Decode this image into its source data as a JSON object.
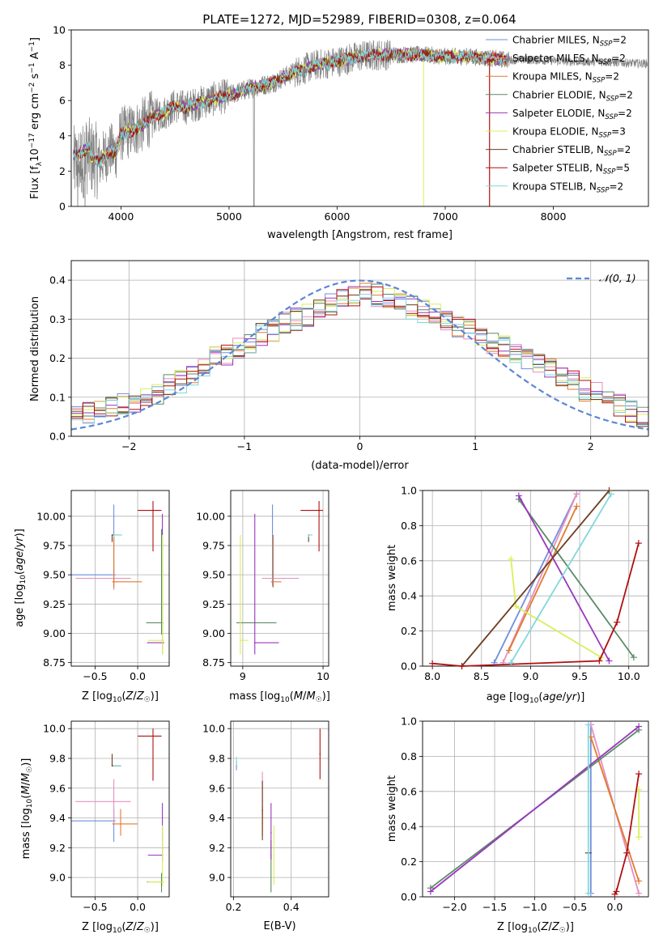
{
  "figure_title": "PLATE=1272, MJD=52989, FIBERID=0308, z=0.064",
  "colors": {
    "grey": "#808080",
    "chabrier_miles": "#6f8fdd",
    "salpeter_miles": "#e58fc0",
    "kroupa_miles": "#e07b2f",
    "chabrier_elodie": "#5b8a67",
    "salpeter_elodie": "#9a36bd",
    "kroupa_elodie": "#d9ef58",
    "chabrier_stelib": "#6b3d1f",
    "salpeter_stelib": "#b01010",
    "kroupa_stelib": "#7fd8dc",
    "gauss": "#5c86d6",
    "grid": "#b0b0b0"
  },
  "series_names": [
    "Chabrier MILES, N$_{SSP}$=2",
    "Salpeter MILES, N$_{SSP}$=2",
    "Kroupa MILES, N$_{SSP}$=2",
    "Chabrier ELODIE, N$_{SSP}$=2",
    "Salpeter ELODIE, N$_{SSP}$=2",
    "Kroupa ELODIE, N$_{SSP}$=3",
    "Chabrier STELIB, N$_{SSP}$=2",
    "Salpeter STELIB, N$_{SSP}$=5",
    "Kroupa STELIB, N$_{SSP}$=2"
  ],
  "legend_labels": [
    {
      "main": "Chabrier MILES, N",
      "sub": "SSP",
      "tail": "=2"
    },
    {
      "main": "Salpeter MILES, N",
      "sub": "SSP",
      "tail": "=2"
    },
    {
      "main": "Kroupa MILES, N",
      "sub": "SSP",
      "tail": "=2"
    },
    {
      "main": "Chabrier ELODIE, N",
      "sub": "SSP",
      "tail": "=2"
    },
    {
      "main": "Salpeter ELODIE, N",
      "sub": "SSP",
      "tail": "=2"
    },
    {
      "main": "Kroupa ELODIE, N",
      "sub": "SSP",
      "tail": "=3"
    },
    {
      "main": "Chabrier STELIB, N",
      "sub": "SSP",
      "tail": "=2"
    },
    {
      "main": "Salpeter STELIB, N",
      "sub": "SSP",
      "tail": "=5"
    },
    {
      "main": "Kroupa STELIB, N",
      "sub": "SSP",
      "tail": "=2"
    }
  ],
  "gauss_label": "𝒩(0, 1)",
  "chart_data": [
    {
      "id": "spectrum",
      "type": "line",
      "xlabel": "wavelength [Angstrom, rest frame]",
      "ylabel": "Flux [f_λ 10^-17 erg cm^-2 s^-1 A^-1]",
      "xlim": [
        3540,
        8880
      ],
      "ylim": [
        0,
        10
      ],
      "xticks": [
        4000,
        5000,
        6000,
        7000,
        8000
      ],
      "yticks": [
        0,
        2,
        4,
        6,
        8,
        10
      ],
      "continuum": {
        "x": [
          3560,
          3650,
          3700,
          3800,
          3900,
          3950,
          4000,
          4100,
          4200,
          4300,
          4400,
          4500,
          4600,
          4800,
          5000,
          5200,
          5400,
          5600,
          5800,
          6000,
          6200,
          6400,
          6600,
          6800,
          7000,
          7200,
          7400,
          7600,
          7800,
          8000,
          8200,
          8400,
          8600,
          8800
        ],
        "y": [
          2.4,
          2.6,
          2.9,
          2.5,
          3.2,
          3.0,
          4.1,
          4.3,
          4.6,
          5.1,
          5.3,
          5.7,
          5.6,
          6.0,
          6.3,
          6.7,
          7.0,
          7.6,
          8.0,
          8.2,
          8.5,
          8.6,
          8.6,
          8.6,
          8.5,
          8.5,
          8.4,
          8.3,
          8.3,
          8.25,
          8.2,
          8.2,
          8.15,
          8.1
        ]
      },
      "notes": "Observed spectrum (grey) with nine model fits overlapping it; models extend to about 7550 Angstrom"
    },
    {
      "id": "residual_hist",
      "type": "line",
      "xlabel": "(data-model)/error",
      "ylabel": "Normed distribution",
      "xlim": [
        -2.5,
        2.5
      ],
      "ylim": [
        0,
        0.45
      ],
      "xticks": [
        -2,
        -1,
        0,
        1,
        2
      ],
      "yticks": [
        0.0,
        0.1,
        0.2,
        0.3,
        0.4
      ],
      "bin_width": 0.1,
      "base_values": [
        0.05,
        0.06,
        0.07,
        0.08,
        0.085,
        0.09,
        0.1,
        0.11,
        0.13,
        0.14,
        0.16,
        0.18,
        0.2,
        0.21,
        0.23,
        0.24,
        0.26,
        0.27,
        0.29,
        0.3,
        0.31,
        0.33,
        0.34,
        0.35,
        0.36,
        0.37,
        0.36,
        0.35,
        0.34,
        0.33,
        0.32,
        0.31,
        0.3,
        0.28,
        0.27,
        0.26,
        0.24,
        0.23,
        0.21,
        0.2,
        0.18,
        0.17,
        0.15,
        0.14,
        0.12,
        0.11,
        0.09,
        0.08,
        0.065,
        0.055
      ]
    },
    {
      "id": "age_vs_Z",
      "type": "scatter",
      "xlabel": "Z [log₁₀(Z/Z☉)]",
      "ylabel": "age [log₁₀(age/yr)]",
      "xlim": [
        -0.78,
        0.37
      ],
      "ylim": [
        8.72,
        10.22
      ],
      "xticks": [
        -0.5,
        0.0
      ],
      "yticks": [
        8.75,
        9.0,
        9.25,
        9.5,
        9.75,
        10.0
      ],
      "points": [
        {
          "series": 0,
          "x": -0.28,
          "y": 9.5,
          "xerr": [
            0.5,
            0.02
          ],
          "yerr": [
            0.1,
            0.6
          ]
        },
        {
          "series": 1,
          "x": -0.28,
          "y": 9.47,
          "xerr": [
            0.45,
            0.2
          ],
          "yerr": [
            0.1,
            0.1
          ]
        },
        {
          "series": 2,
          "x": -0.28,
          "y": 9.44,
          "xerr": [
            0.02,
            0.33
          ],
          "yerr": [
            0.05,
            0.4
          ]
        },
        {
          "series": 3,
          "x": 0.28,
          "y": 9.09,
          "xerr": [
            0.18,
            0.02
          ],
          "yerr": [
            0.1,
            0.8
          ]
        },
        {
          "series": 4,
          "x": 0.29,
          "y": 8.92,
          "xerr": [
            0.18,
            0.02
          ],
          "yerr": [
            0.1,
            1.1
          ]
        },
        {
          "series": 5,
          "x": 0.29,
          "y": 8.94,
          "xerr": [
            0.17,
            0.02
          ],
          "yerr": [
            0.12,
            0.9
          ]
        },
        {
          "series": 6,
          "x": -0.3,
          "y": 9.84,
          "xerr": [
            0.0,
            0.1
          ],
          "yerr": [
            0.06,
            0.0
          ]
        },
        {
          "series": 7,
          "x": 0.18,
          "y": 10.05,
          "xerr": [
            0.18,
            0.1
          ],
          "yerr": [
            0.35,
            0.08
          ]
        },
        {
          "series": 8,
          "x": -0.28,
          "y": 9.84,
          "xerr": [
            0.0,
            0.1
          ],
          "yerr": [
            0.02,
            0.0
          ]
        }
      ]
    },
    {
      "id": "age_vs_mass",
      "type": "scatter",
      "xlabel": "mass [log₁₀(M/M☉)]",
      "ylabel": "",
      "xlim": [
        8.85,
        10.07
      ],
      "ylim": [
        8.72,
        10.22
      ],
      "xticks": [
        9,
        10
      ],
      "yticks": [
        8.75,
        9.0,
        9.25,
        9.5,
        9.75,
        10.0
      ],
      "points": [
        {
          "series": 0,
          "x": 9.37,
          "y": 9.5,
          "xerr": [
            0.0,
            0.0
          ],
          "yerr": [
            0.1,
            0.6
          ]
        },
        {
          "series": 1,
          "x": 9.5,
          "y": 9.47,
          "xerr": [
            0.26,
            0.2
          ],
          "yerr": [
            0.0,
            0.0
          ]
        },
        {
          "series": 2,
          "x": 9.38,
          "y": 9.44,
          "xerr": [
            0.03,
            0.1
          ],
          "yerr": [
            0.05,
            0.4
          ]
        },
        {
          "series": 3,
          "x": 8.97,
          "y": 9.09,
          "xerr": [
            0.05,
            0.45
          ],
          "yerr": [
            0.0,
            0.0
          ]
        },
        {
          "series": 4,
          "x": 9.15,
          "y": 8.92,
          "xerr": [
            0.0,
            0.3
          ],
          "yerr": [
            0.1,
            1.1
          ]
        },
        {
          "series": 5,
          "x": 8.97,
          "y": 8.94,
          "xerr": [
            0.0,
            0.1
          ],
          "yerr": [
            0.12,
            0.9
          ]
        },
        {
          "series": 6,
          "x": 9.82,
          "y": 9.84,
          "xerr": [
            0.0,
            0.0
          ],
          "yerr": [
            0.06,
            0.0
          ]
        },
        {
          "series": 7,
          "x": 9.95,
          "y": 10.05,
          "xerr": [
            0.23,
            0.05
          ],
          "yerr": [
            0.35,
            0.08
          ]
        },
        {
          "series": 8,
          "x": 9.82,
          "y": 9.84,
          "xerr": [
            0.0,
            0.05
          ],
          "yerr": [
            0.02,
            0.0
          ]
        }
      ]
    },
    {
      "id": "weight_vs_age",
      "type": "line",
      "xlabel": "age [log₁₀(age/yr)]",
      "ylabel": "mass weight",
      "xlim": [
        7.9,
        10.2
      ],
      "ylim": [
        0,
        1
      ],
      "xticks": [
        8.0,
        8.5,
        9.0,
        9.5,
        10.0
      ],
      "yticks": [
        0.0,
        0.2,
        0.4,
        0.6,
        0.8,
        1.0
      ],
      "series": [
        {
          "series": 0,
          "x": [
            8.63,
            9.47
          ],
          "y": [
            0.02,
            0.98
          ]
        },
        {
          "series": 1,
          "x": [
            8.72,
            9.47
          ],
          "y": [
            0.02,
            0.98
          ]
        },
        {
          "series": 2,
          "x": [
            8.78,
            9.47
          ],
          "y": [
            0.09,
            0.91
          ]
        },
        {
          "series": 3,
          "x": [
            8.88,
            10.05
          ],
          "y": [
            0.95,
            0.05
          ]
        },
        {
          "series": 4,
          "x": [
            8.88,
            9.8
          ],
          "y": [
            0.97,
            0.03
          ]
        },
        {
          "series": 5,
          "x": [
            8.8,
            8.85,
            9.72
          ],
          "y": [
            0.61,
            0.34,
            0.05
          ]
        },
        {
          "series": 6,
          "x": [
            8.3,
            9.8
          ],
          "y": [
            0.0,
            1.0
          ]
        },
        {
          "series": 7,
          "x": [
            8.0,
            8.3,
            9.7,
            9.88,
            10.1
          ],
          "y": [
            0.015,
            0.0,
            0.03,
            0.25,
            0.7
          ]
        },
        {
          "series": 8,
          "x": [
            8.8,
            9.82
          ],
          "y": [
            0.02,
            0.98
          ]
        }
      ]
    },
    {
      "id": "mass_vs_Z",
      "type": "scatter",
      "xlabel": "Z [log₁₀(Z/Z☉)]",
      "ylabel": "mass [log₁₀(M/M☉)]",
      "xlim": [
        -0.78,
        0.37
      ],
      "ylim": [
        8.87,
        10.05
      ],
      "xticks": [
        -0.5,
        0.0
      ],
      "yticks": [
        9.0,
        9.2,
        9.4,
        9.6,
        9.8,
        10.0
      ],
      "points": [
        {
          "series": 0,
          "x": -0.28,
          "y": 9.38,
          "xerr": [
            0.5,
            0.02
          ],
          "yerr": [
            0.14,
            0.08
          ]
        },
        {
          "series": 1,
          "x": -0.28,
          "y": 9.51,
          "xerr": [
            0.45,
            0.2
          ],
          "yerr": [
            0.15,
            0.15
          ]
        },
        {
          "series": 2,
          "x": -0.2,
          "y": 9.36,
          "xerr": [
            0.1,
            0.2
          ],
          "yerr": [
            0.08,
            0.1
          ]
        },
        {
          "series": 3,
          "x": 0.28,
          "y": 8.97,
          "xerr": [
            0.17,
            0.02
          ],
          "yerr": [
            0.07,
            0.06
          ]
        },
        {
          "series": 4,
          "x": 0.29,
          "y": 9.15,
          "xerr": [
            0.17,
            0.0
          ],
          "yerr": [
            0.05,
            0.35
          ]
        },
        {
          "series": 5,
          "x": 0.29,
          "y": 8.97,
          "xerr": [
            0.17,
            0.02
          ],
          "yerr": [
            0.03,
            0.38
          ]
        },
        {
          "series": 6,
          "x": -0.3,
          "y": 9.75,
          "xerr": [
            0.0,
            0.1
          ],
          "yerr": [
            0.0,
            0.08
          ]
        },
        {
          "series": 7,
          "x": 0.18,
          "y": 9.95,
          "xerr": [
            0.18,
            0.1
          ],
          "yerr": [
            0.3,
            0.05
          ]
        },
        {
          "series": 8,
          "x": -0.28,
          "y": 9.75,
          "xerr": [
            0.0,
            0.09
          ],
          "yerr": [
            0.0,
            0.0
          ]
        }
      ]
    },
    {
      "id": "mass_vs_ebv",
      "type": "scatter",
      "xlabel": "E(B-V)",
      "ylabel": "",
      "xlim": [
        0.19,
        0.53
      ],
      "ylim": [
        8.87,
        10.05
      ],
      "xticks": [
        0.2,
        0.4
      ],
      "yticks": [
        9.0,
        9.2,
        9.4,
        9.6,
        9.8,
        10.0
      ],
      "points": [
        {
          "series": 0,
          "x": 0.21,
          "y": 9.75,
          "xerr": [
            0.0,
            0.0
          ],
          "yerr": [
            0.03,
            0.03
          ]
        },
        {
          "series": 1,
          "x": 0.3,
          "y": 9.51,
          "xerr": [
            0.0,
            0.0
          ],
          "yerr": [
            0.15,
            0.2
          ]
        },
        {
          "series": 2,
          "x": 0.3,
          "y": 9.36,
          "xerr": [
            0.0,
            0.0
          ],
          "yerr": [
            0.08,
            0.12
          ]
        },
        {
          "series": 3,
          "x": 0.33,
          "y": 9.15,
          "xerr": [
            0.0,
            0.0
          ],
          "yerr": [
            0.25,
            0.1
          ]
        },
        {
          "series": 4,
          "x": 0.33,
          "y": 9.3,
          "xerr": [
            0.0,
            0.0
          ],
          "yerr": [
            0.18,
            0.2
          ]
        },
        {
          "series": 5,
          "x": 0.34,
          "y": 9.15,
          "xerr": [
            0.0,
            0.0
          ],
          "yerr": [
            0.2,
            0.2
          ]
        },
        {
          "series": 6,
          "x": 0.3,
          "y": 9.45,
          "xerr": [
            0.0,
            0.0
          ],
          "yerr": [
            0.2,
            0.2
          ]
        },
        {
          "series": 7,
          "x": 0.5,
          "y": 9.83,
          "xerr": [
            0.0,
            0.0
          ],
          "yerr": [
            0.17,
            0.17
          ]
        },
        {
          "series": 8,
          "x": 0.21,
          "y": 9.78,
          "xerr": [
            0.0,
            0.0
          ],
          "yerr": [
            0.03,
            0.03
          ]
        }
      ]
    },
    {
      "id": "weight_vs_Z",
      "type": "line",
      "xlabel": "Z [log₁₀(Z/Z☉)]",
      "ylabel": "mass weight",
      "xlim": [
        -2.4,
        0.42
      ],
      "ylim": [
        0,
        1
      ],
      "xticks": [
        -2.0,
        -1.5,
        -1.0,
        -0.5,
        0.0
      ],
      "yticks": [
        0.0,
        0.2,
        0.4,
        0.6,
        0.8,
        1.0
      ],
      "series": [
        {
          "series": 0,
          "x": [
            -0.3,
            -0.3
          ],
          "y": [
            0.02,
            0.98
          ]
        },
        {
          "series": 1,
          "x": [
            -0.3,
            0.3
          ],
          "y": [
            0.98,
            0.02
          ]
        },
        {
          "series": 2,
          "x": [
            -0.3,
            0.3
          ],
          "y": [
            0.91,
            0.09
          ]
        },
        {
          "series": 3,
          "x": [
            -2.3,
            0.3
          ],
          "y": [
            0.05,
            0.95
          ]
        },
        {
          "series": 4,
          "x": [
            -2.3,
            0.3
          ],
          "y": [
            0.03,
            0.97
          ]
        },
        {
          "series": 5,
          "x": [
            0.3,
            0.3
          ],
          "y": [
            0.61,
            0.34
          ]
        },
        {
          "series": 6,
          "x": [
            -0.33
          ],
          "y": [
            0.25
          ]
        },
        {
          "series": 7,
          "x": [
            0.0,
            0.02,
            0.15,
            0.3
          ],
          "y": [
            0.015,
            0.03,
            0.25,
            0.7
          ]
        },
        {
          "series": 8,
          "x": [
            -0.33,
            -0.33
          ],
          "y": [
            0.02,
            0.98
          ]
        }
      ]
    }
  ]
}
